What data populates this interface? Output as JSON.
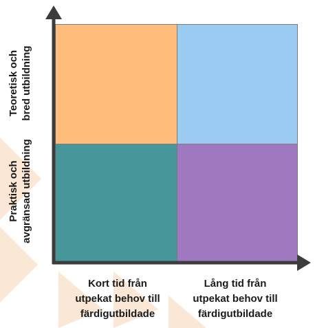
{
  "quadrants": {
    "top_left_color": "#ffbd7b",
    "top_right_color": "#9ccbf2",
    "bottom_left_color": "#47969a",
    "bottom_right_color": "#a078c0"
  },
  "y_axis": {
    "top_label_line1": "Teoretisk och",
    "top_label_line2": "bred utbildning",
    "bottom_label_line1": "Praktisk och",
    "bottom_label_line2": "avgränsad utbildning"
  },
  "x_axis": {
    "left_label_line1": "Kort tid från",
    "left_label_line2": "utpekat behov till",
    "left_label_line3": "färdigutbildade",
    "right_label_line1": "Lång tid från",
    "right_label_line2": "utpekat behov till",
    "right_label_line3": "färdigutbildade"
  },
  "watermark_color": "#fbe7d6",
  "axis_color": "#3c3c3c"
}
